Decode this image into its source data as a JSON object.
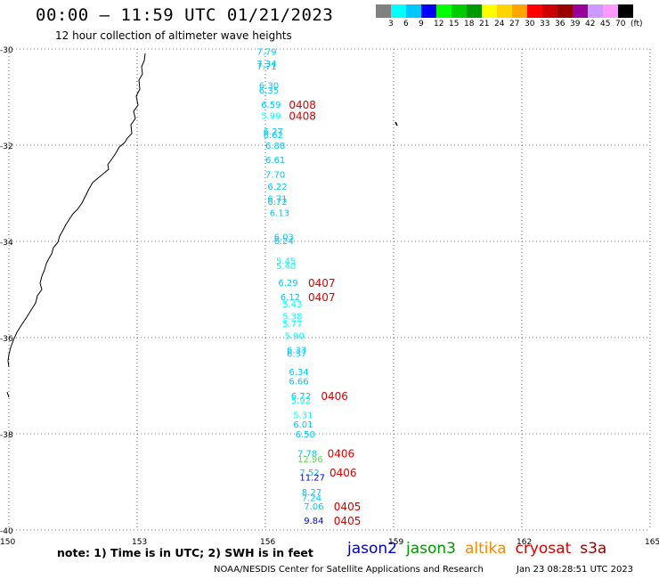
{
  "title": "00:00 – 11:59 UTC 01/21/2023",
  "subtitle": "12 hour collection of altimeter wave heights",
  "colorbar": {
    "colors": [
      "#808080",
      "#00ffff",
      "#00c8ff",
      "#0000ff",
      "#00ff00",
      "#00cc00",
      "#009900",
      "#ffff00",
      "#ffd400",
      "#ffa500",
      "#ff0000",
      "#cc0000",
      "#990000",
      "#990099",
      "#cc99ff",
      "#ff99ff",
      "#000000"
    ],
    "labels": [
      "3",
      "6",
      "9",
      "12",
      "15",
      "18",
      "21",
      "24",
      "27",
      "30",
      "33",
      "36",
      "39",
      "42",
      "45",
      "70",
      "(ft)"
    ]
  },
  "map": {
    "lon_range": [
      150,
      165
    ],
    "lat_range": [
      -40,
      -30
    ],
    "lon_ticks": [
      "150",
      "153",
      "156",
      "159",
      "162",
      "165"
    ],
    "lat_ticks": [
      "-30",
      "-32",
      "-34",
      "-36",
      "-38",
      "-40"
    ],
    "grid": "dotted"
  },
  "observations": [
    {
      "lon": 155.8,
      "lat": -30.05,
      "swh": "7.79",
      "color": "#00c8ff"
    },
    {
      "lon": 155.8,
      "lat": -30.3,
      "swh": "7.34",
      "color": "#00c8ff"
    },
    {
      "lon": 155.8,
      "lat": -30.35,
      "swh": "7.71",
      "color": "#00c8ff"
    },
    {
      "lon": 155.85,
      "lat": -30.75,
      "swh": "6.30",
      "color": "#00c8ff"
    },
    {
      "lon": 155.85,
      "lat": -30.85,
      "swh": "6.35",
      "color": "#00c8ff"
    },
    {
      "lon": 155.9,
      "lat": -31.15,
      "swh": "6.59",
      "color": "#00c8ff"
    },
    {
      "lon": 155.9,
      "lat": -31.38,
      "swh": "5.99",
      "color": "#00ffff"
    },
    {
      "lon": 155.95,
      "lat": -31.7,
      "swh": "6.27",
      "color": "#00c8ff"
    },
    {
      "lon": 155.95,
      "lat": -31.78,
      "swh": "6.62",
      "color": "#00c8ff"
    },
    {
      "lon": 156.0,
      "lat": -32.0,
      "swh": "6.88",
      "color": "#00c8ff"
    },
    {
      "lon": 156.0,
      "lat": -32.3,
      "swh": "6.61",
      "color": "#00c8ff"
    },
    {
      "lon": 156.0,
      "lat": -32.6,
      "swh": "7.70",
      "color": "#00c8ff"
    },
    {
      "lon": 156.05,
      "lat": -32.85,
      "swh": "6.22",
      "color": "#00c8ff"
    },
    {
      "lon": 156.05,
      "lat": -33.1,
      "swh": "6.71",
      "color": "#00c8ff"
    },
    {
      "lon": 156.05,
      "lat": -33.17,
      "swh": "6.72",
      "color": "#00c8ff"
    },
    {
      "lon": 156.1,
      "lat": -33.4,
      "swh": "6.13",
      "color": "#00c8ff"
    },
    {
      "lon": 156.2,
      "lat": -33.9,
      "swh": "6.03",
      "color": "#00c8ff"
    },
    {
      "lon": 156.2,
      "lat": -33.98,
      "swh": "6.24",
      "color": "#00c8ff"
    },
    {
      "lon": 156.25,
      "lat": -34.4,
      "swh": "5.45",
      "color": "#00ffff"
    },
    {
      "lon": 156.25,
      "lat": -34.5,
      "swh": "5.40",
      "color": "#00ffff"
    },
    {
      "lon": 156.3,
      "lat": -34.85,
      "swh": "6.29",
      "color": "#00c8ff"
    },
    {
      "lon": 156.35,
      "lat": -35.15,
      "swh": "6.12",
      "color": "#00c8ff"
    },
    {
      "lon": 156.4,
      "lat": -35.3,
      "swh": "5.43",
      "color": "#00ffff"
    },
    {
      "lon": 156.4,
      "lat": -35.55,
      "swh": "5.38",
      "color": "#00ffff"
    },
    {
      "lon": 156.4,
      "lat": -35.7,
      "swh": "5.77",
      "color": "#00ffff"
    },
    {
      "lon": 156.45,
      "lat": -35.95,
      "swh": "5.90",
      "color": "#00ffff"
    },
    {
      "lon": 156.5,
      "lat": -36.25,
      "swh": "6.33",
      "color": "#00c8ff"
    },
    {
      "lon": 156.5,
      "lat": -36.32,
      "swh": "6.37",
      "color": "#00c8ff"
    },
    {
      "lon": 156.55,
      "lat": -36.7,
      "swh": "6.34",
      "color": "#00c8ff"
    },
    {
      "lon": 156.55,
      "lat": -36.9,
      "swh": "6.66",
      "color": "#00c8ff"
    },
    {
      "lon": 156.6,
      "lat": -37.2,
      "swh": "6.72",
      "color": "#00c8ff"
    },
    {
      "lon": 156.6,
      "lat": -37.3,
      "swh": "5.92",
      "color": "#00ffff"
    },
    {
      "lon": 156.65,
      "lat": -37.6,
      "swh": "5.31",
      "color": "#00ffff"
    },
    {
      "lon": 156.65,
      "lat": -37.8,
      "swh": "6.01",
      "color": "#00c8ff"
    },
    {
      "lon": 156.7,
      "lat": -38.0,
      "swh": "6.50",
      "color": "#00c8ff"
    },
    {
      "lon": 156.75,
      "lat": -38.4,
      "swh": "7.78",
      "color": "#00c8ff"
    },
    {
      "lon": 156.75,
      "lat": -38.52,
      "swh": "12.96",
      "color": "#55dd55"
    },
    {
      "lon": 156.8,
      "lat": -38.8,
      "swh": "7.52",
      "color": "#00c8ff"
    },
    {
      "lon": 156.8,
      "lat": -38.9,
      "swh": "11.27",
      "color": "#0000ff"
    },
    {
      "lon": 156.85,
      "lat": -39.2,
      "swh": "8.27",
      "color": "#00c8ff"
    },
    {
      "lon": 156.85,
      "lat": -39.32,
      "swh": "7.24",
      "color": "#00c8ff"
    },
    {
      "lon": 156.9,
      "lat": -39.5,
      "swh": "7.06",
      "color": "#00c8ff"
    },
    {
      "lon": 156.9,
      "lat": -39.8,
      "swh": "9.84",
      "color": "#0000ff"
    }
  ],
  "times": [
    {
      "lon": 156.55,
      "lat": -31.15,
      "text": "0408"
    },
    {
      "lon": 156.55,
      "lat": -31.38,
      "text": "0408"
    },
    {
      "lon": 157.0,
      "lat": -34.85,
      "text": "0407"
    },
    {
      "lon": 157.0,
      "lat": -35.15,
      "text": "0407"
    },
    {
      "lon": 157.3,
      "lat": -37.2,
      "text": "0406"
    },
    {
      "lon": 157.45,
      "lat": -38.4,
      "text": "0406"
    },
    {
      "lon": 157.5,
      "lat": -38.8,
      "text": "0406"
    },
    {
      "lon": 157.6,
      "lat": -39.5,
      "text": "0405"
    },
    {
      "lon": 157.6,
      "lat": -39.8,
      "text": "0405"
    }
  ],
  "note": "note:  1) Time is in UTC;  2) SWH is in feet",
  "satellites": [
    {
      "name": "jason2",
      "color": "#0000cc"
    },
    {
      "name": "jason3",
      "color": "#009900"
    },
    {
      "name": "altika",
      "color": "#ff8800"
    },
    {
      "name": "cryosat",
      "color": "#dd0000"
    },
    {
      "name": "s3a",
      "color": "#990000"
    }
  ],
  "credit": "NOAA/NESDIS Center for Satellite Applications and Research",
  "timestamp": "Jan 23 08:28:51 UTC 2023"
}
